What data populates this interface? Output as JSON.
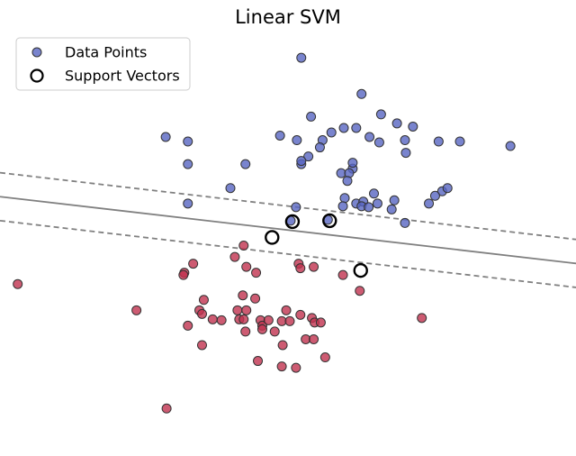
{
  "chart_data": {
    "type": "scatter",
    "title": "Linear SVM",
    "xlabel": "",
    "ylabel": "",
    "axes_visible": false,
    "grid": false,
    "xlim": [
      -3.0,
      3.5
    ],
    "ylim": [
      -4.6,
      4.8
    ],
    "legend": {
      "position": "top-left",
      "entries": [
        "Data Points",
        "Support Vectors"
      ]
    },
    "colors": {
      "class_a": "#5865c2",
      "class_b": "#c0324f",
      "support_edge": "#000000",
      "boundary": "#808080"
    },
    "decision_boundary": {
      "slope": -0.227,
      "intercept": 0.45
    },
    "margin_offset": 0.53,
    "series": [
      {
        "class": "class_a",
        "points": [
          [
            0.4,
            4.2
          ],
          [
            1.08,
            3.4
          ],
          [
            0.74,
            2.55
          ],
          [
            1.3,
            2.95
          ],
          [
            1.48,
            2.75
          ],
          [
            -1.13,
            2.45
          ],
          [
            -0.88,
            2.35
          ],
          [
            -0.88,
            1.85
          ],
          [
            0.16,
            2.48
          ],
          [
            0.35,
            2.38
          ],
          [
            0.51,
            2.9
          ],
          [
            0.64,
            2.38
          ],
          [
            0.61,
            2.22
          ],
          [
            0.88,
            2.65
          ],
          [
            1.02,
            2.65
          ],
          [
            1.17,
            2.45
          ],
          [
            1.28,
            2.33
          ],
          [
            1.66,
            2.68
          ],
          [
            1.58,
            2.1
          ],
          [
            -0.23,
            1.85
          ],
          [
            0.4,
            1.85
          ],
          [
            0.48,
            2.02
          ],
          [
            0.4,
            1.92
          ],
          [
            0.85,
            1.65
          ],
          [
            0.98,
            1.75
          ],
          [
            0.98,
            1.88
          ],
          [
            0.94,
            1.65
          ],
          [
            0.92,
            1.48
          ],
          [
            1.57,
            2.38
          ],
          [
            1.95,
            2.35
          ],
          [
            2.19,
            2.35
          ],
          [
            2.76,
            2.25
          ],
          [
            -0.4,
            1.32
          ],
          [
            -0.88,
            0.98
          ],
          [
            0.34,
            0.9
          ],
          [
            0.89,
            1.1
          ],
          [
            1.02,
            0.98
          ],
          [
            1.1,
            1.02
          ],
          [
            1.08,
            0.92
          ],
          [
            0.87,
            0.92
          ],
          [
            1.16,
            0.9
          ],
          [
            1.22,
            1.2
          ],
          [
            1.26,
            0.98
          ],
          [
            1.42,
            0.85
          ],
          [
            1.45,
            1.05
          ],
          [
            1.84,
            0.98
          ],
          [
            1.99,
            1.25
          ],
          [
            1.91,
            1.15
          ],
          [
            2.05,
            1.32
          ],
          [
            1.57,
            0.55
          ],
          [
            0.28,
            0.6
          ],
          [
            0.7,
            0.62
          ]
        ]
      },
      {
        "class": "class_b",
        "points": [
          [
            -2.8,
            -0.8
          ],
          [
            -0.35,
            -0.2
          ],
          [
            -0.25,
            0.05
          ],
          [
            -0.22,
            -0.42
          ],
          [
            -0.82,
            -0.35
          ],
          [
            -0.92,
            -0.55
          ],
          [
            -0.93,
            -0.6
          ],
          [
            -0.11,
            -0.55
          ],
          [
            0.37,
            -0.35
          ],
          [
            0.39,
            -0.45
          ],
          [
            0.54,
            -0.42
          ],
          [
            0.87,
            -0.6
          ],
          [
            1.06,
            -0.95
          ],
          [
            -0.7,
            -1.15
          ],
          [
            -0.26,
            -1.05
          ],
          [
            -0.12,
            -1.12
          ],
          [
            -0.75,
            -1.38
          ],
          [
            -0.72,
            -1.46
          ],
          [
            -1.46,
            -1.38
          ],
          [
            -0.32,
            -1.38
          ],
          [
            -0.22,
            -1.38
          ],
          [
            0.23,
            -1.38
          ],
          [
            0.39,
            -1.48
          ],
          [
            1.76,
            -1.55
          ],
          [
            -0.88,
            -1.72
          ],
          [
            -0.3,
            -1.58
          ],
          [
            -0.25,
            -1.58
          ],
          [
            -0.5,
            -1.6
          ],
          [
            -0.6,
            -1.58
          ],
          [
            -0.06,
            -1.6
          ],
          [
            -0.04,
            -1.72
          ],
          [
            -0.04,
            -1.8
          ],
          [
            0.03,
            -1.6
          ],
          [
            0.1,
            -1.85
          ],
          [
            0.18,
            -1.62
          ],
          [
            0.27,
            -1.62
          ],
          [
            0.52,
            -1.55
          ],
          [
            0.55,
            -1.65
          ],
          [
            0.62,
            -1.65
          ],
          [
            -0.23,
            -1.85
          ],
          [
            0.45,
            -2.02
          ],
          [
            0.54,
            -2.02
          ],
          [
            -0.72,
            -2.15
          ],
          [
            0.19,
            -2.15
          ],
          [
            0.67,
            -2.42
          ],
          [
            -0.09,
            -2.5
          ],
          [
            0.18,
            -2.62
          ],
          [
            0.34,
            -2.65
          ],
          [
            -1.12,
            -3.55
          ]
        ]
      }
    ],
    "support_vectors": [
      [
        0.3,
        0.58
      ],
      [
        0.72,
        0.6
      ],
      [
        0.07,
        0.23
      ],
      [
        1.07,
        -0.5
      ]
    ]
  }
}
